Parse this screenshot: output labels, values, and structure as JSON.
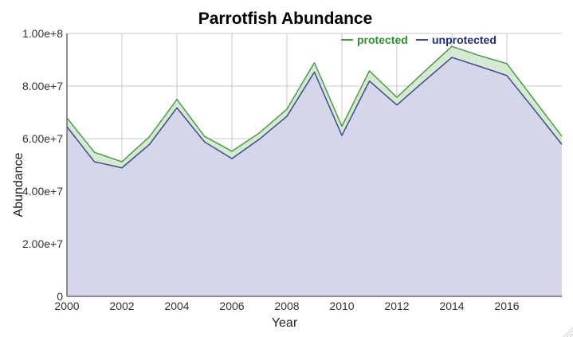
{
  "chart_data": {
    "type": "area",
    "title": "Parrotfish Abundance",
    "xlabel": "Year",
    "ylabel": "Abundance",
    "x": [
      2000,
      2001,
      2002,
      2003,
      2004,
      2005,
      2006,
      2007,
      2008,
      2009,
      2010,
      2011,
      2012,
      2013,
      2014,
      2015,
      2016,
      2017,
      2018
    ],
    "series": [
      {
        "name": "protected",
        "color": "#4a9e42",
        "fill": "#d6ead3",
        "values": [
          67900000,
          54800000,
          51200000,
          60700000,
          74900000,
          60900000,
          55200000,
          62200000,
          71200000,
          88900000,
          64700000,
          85800000,
          75700000,
          85500000,
          95100000,
          91600000,
          88500000,
          74700000,
          60900000
        ]
      },
      {
        "name": "unprotected",
        "color": "#3c4b91",
        "fill": "#d5d6ea",
        "values": [
          64500000,
          51200000,
          48900000,
          57800000,
          71700000,
          58800000,
          52400000,
          59800000,
          68500000,
          85300000,
          61200000,
          81900000,
          72800000,
          81900000,
          90900000,
          87500000,
          84000000,
          71000000,
          57800000
        ]
      }
    ],
    "xlim": [
      2000,
      2018
    ],
    "ylim": [
      0,
      100000000
    ],
    "x_ticks": [
      "2000",
      "2002",
      "2004",
      "2006",
      "2008",
      "2010",
      "2012",
      "2014",
      "2016"
    ],
    "y_ticks": [
      "0",
      "2.00e+7",
      "4.00e+7",
      "6.00e+7",
      "8.00e+7",
      "1.00e+8"
    ],
    "x_tick_values": [
      2000,
      2002,
      2004,
      2006,
      2008,
      2010,
      2012,
      2014,
      2016
    ],
    "y_tick_values": [
      0,
      20000000,
      40000000,
      60000000,
      80000000,
      100000000
    ],
    "grid": true,
    "legend_position": "top-right"
  }
}
